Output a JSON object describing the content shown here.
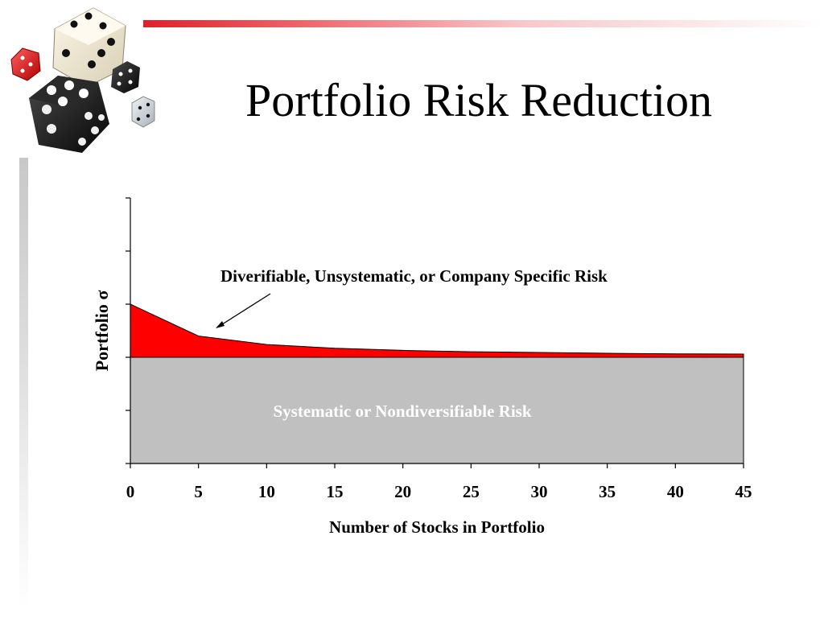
{
  "slide": {
    "title": "Portfolio Risk Reduction"
  },
  "decoration": {
    "logo": "dice-cluster-icon"
  },
  "colors": {
    "diversifiable": "#ff0000",
    "systematic": "#c0c0c0",
    "accent_bar": "#e0202a"
  },
  "chart_data": {
    "type": "area",
    "x": [
      0,
      5,
      10,
      15,
      20,
      25,
      30,
      35,
      40,
      45
    ],
    "series": [
      {
        "name": "Diverifiable, Unsystematic, or Company Specific Risk",
        "values": [
          1.0,
          0.4,
          0.24,
          0.17,
          0.13,
          0.105,
          0.09,
          0.075,
          0.065,
          0.06
        ],
        "color": "#ff0000"
      },
      {
        "name": "Systematic or Nondiversifiable Risk",
        "values": [
          2.0,
          2.0,
          2.0,
          2.0,
          2.0,
          2.0,
          2.0,
          2.0,
          2.0,
          2.0
        ],
        "color": "#c0c0c0"
      }
    ],
    "xlabel": "Number of Stocks in Portfolio",
    "ylabel": "Portfolio σ",
    "xticks": [
      "0",
      "5",
      "10",
      "15",
      "20",
      "25",
      "30",
      "35",
      "40",
      "45"
    ],
    "xlim": [
      0,
      45
    ],
    "ylim": [
      0,
      5
    ],
    "yticks_labeled": false,
    "annotations": [
      {
        "text": "Diverifiable, Unsystematic, or Company Specific Risk",
        "color": "#000000"
      },
      {
        "text": "Systematic or Nondiversifiable Risk",
        "color": "#ffffff"
      }
    ],
    "grid": false,
    "legend": "none"
  }
}
